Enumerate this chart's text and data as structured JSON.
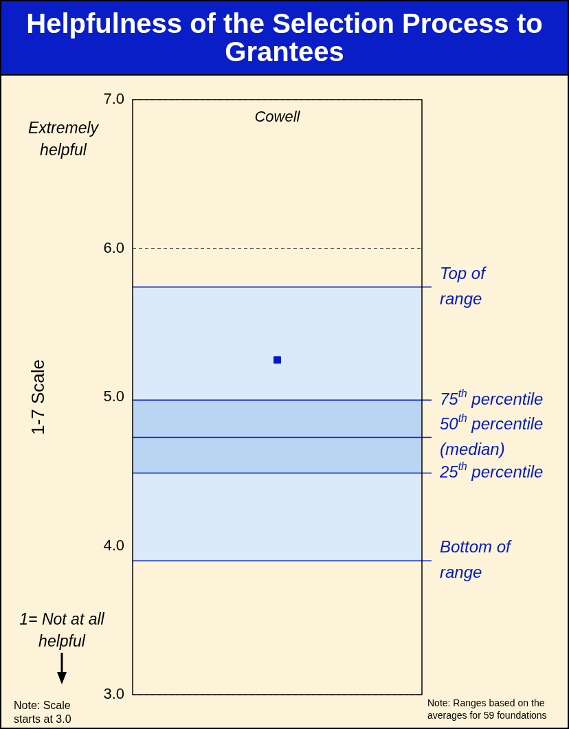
{
  "chart_data": {
    "type": "scatter",
    "title": "Helpfulness of the Selection Process to Grantees",
    "ylabel": "1-7 Scale",
    "categories": [
      "Cowell"
    ],
    "series": [
      {
        "color": "#0018c8",
        "values": [
          5.25
        ]
      }
    ],
    "ylim": [
      3,
      7
    ],
    "yticks": [
      {
        "value": 3,
        "label": "3.0"
      },
      {
        "value": 4,
        "label": "4.0"
      },
      {
        "value": 5,
        "label": "5.0"
      },
      {
        "value": 6,
        "label": "6.0"
      },
      {
        "value": 7,
        "label": "7.0"
      }
    ],
    "marker": "square",
    "grid": "y",
    "legend": false,
    "bands": [
      {
        "axis": "y",
        "from": 3.9,
        "to": 5.74,
        "label": null,
        "color": "#dce9fa"
      },
      {
        "axis": "y",
        "from": 4.49,
        "to": 4.98,
        "label": null,
        "color": "#b9d5f3"
      }
    ],
    "ref_lines": [
      {
        "axis": "y",
        "value": 5.74,
        "label": "Top of range",
        "color": "#0018c8"
      },
      {
        "axis": "y",
        "value": 4.98,
        "label": "75$^{th}$ percentile",
        "color": "#0018c8"
      },
      {
        "axis": "y",
        "value": 4.73,
        "label": "50$^{th}$ percentile (median)",
        "color": "#0018c8"
      },
      {
        "axis": "y",
        "value": 4.49,
        "label": "25$^{th}$ percentile",
        "color": "#0018c8"
      },
      {
        "axis": "y",
        "value": 3.9,
        "label": "Bottom of range",
        "color": "#0018c8"
      }
    ],
    "annotations": [
      "Extremely helpful",
      "1= Not at all helpful",
      "Note: Scale starts at 3.0",
      "Note: Ranges based on the averages for 59 foundations"
    ]
  }
}
